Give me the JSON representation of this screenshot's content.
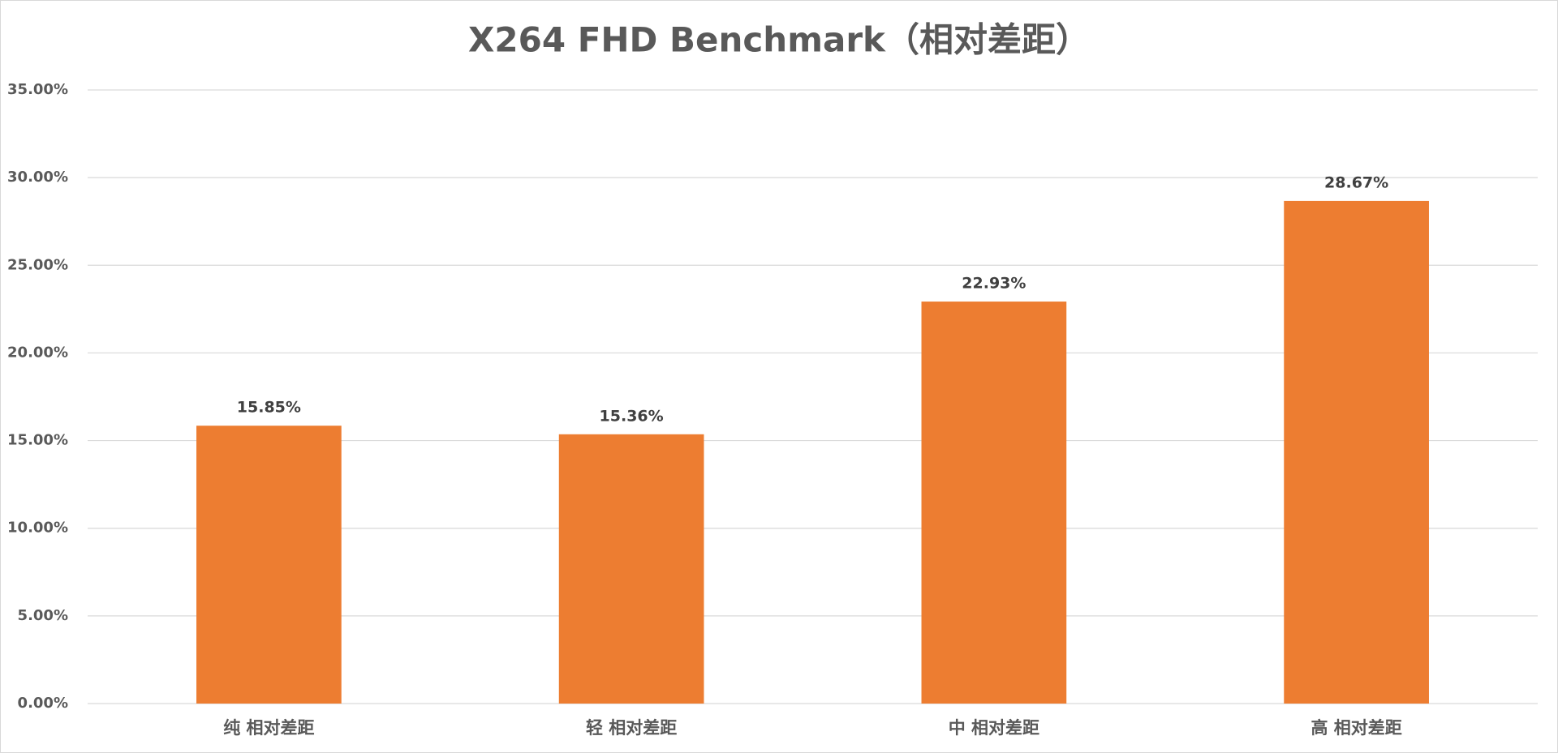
{
  "chart_data": {
    "type": "bar",
    "title": "X264 FHD Benchmark（相对差距）",
    "categories": [
      "纯 相对差距",
      "轻 相对差距",
      "中 相对差距",
      "高 相对差距"
    ],
    "values": [
      15.85,
      15.36,
      22.93,
      28.67
    ],
    "value_labels": [
      "15.85%",
      "15.36%",
      "22.93%",
      "28.67%"
    ],
    "color": "#ed7d31",
    "ylim": [
      0,
      35
    ],
    "yticks": [
      {
        "value": 0,
        "label": "0.00%"
      },
      {
        "value": 5,
        "label": "5.00%"
      },
      {
        "value": 10,
        "label": "10.00%"
      },
      {
        "value": 15,
        "label": "15.00%"
      },
      {
        "value": 20,
        "label": "20.00%"
      },
      {
        "value": 25,
        "label": "25.00%"
      },
      {
        "value": 30,
        "label": "30.00%"
      },
      {
        "value": 35,
        "label": "35.00%"
      }
    ],
    "grid": true
  }
}
